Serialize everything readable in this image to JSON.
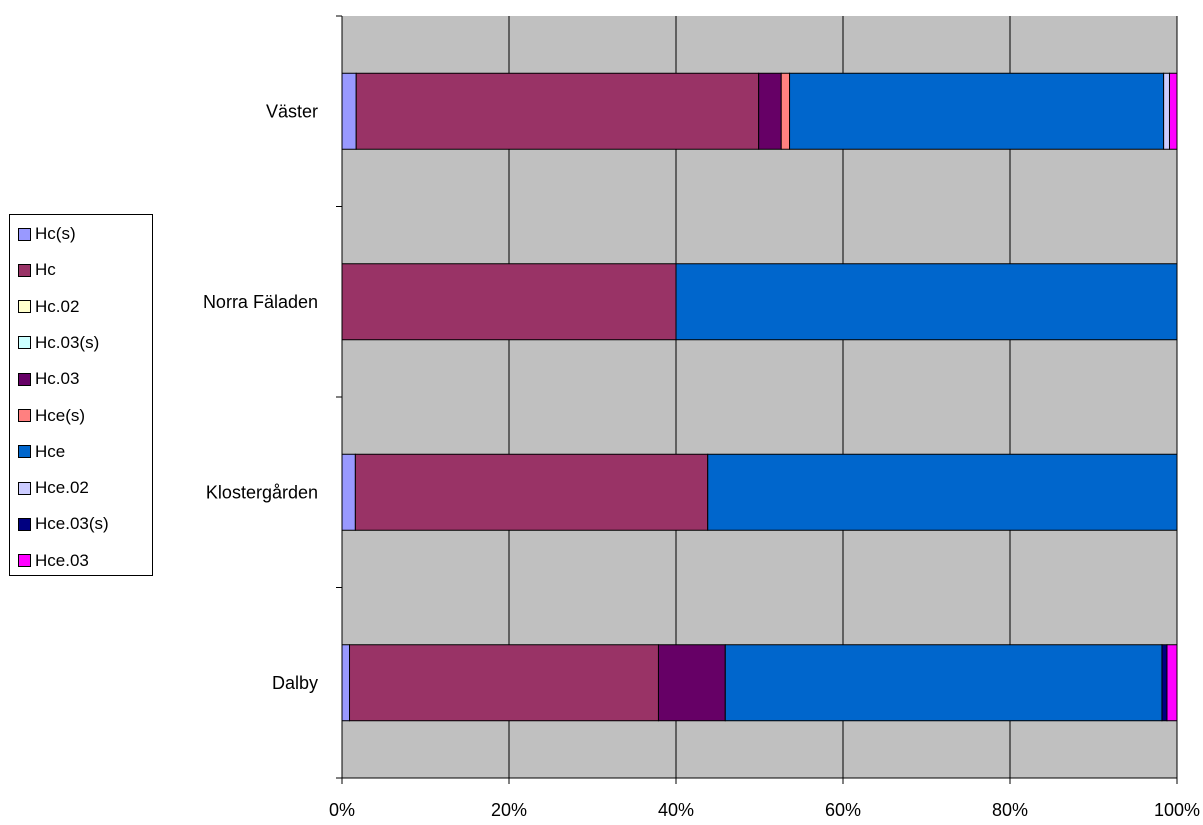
{
  "chart_data": {
    "type": "bar",
    "orientation": "horizontal",
    "stacked": "percent",
    "categories": [
      "Väster",
      "Norra Fäladen",
      "Klostergården",
      "Dalby"
    ],
    "xlim": [
      0,
      100
    ],
    "x_ticks": [
      "0%",
      "20%",
      "40%",
      "60%",
      "80%",
      "100%"
    ],
    "grid": true,
    "legend_position": "left",
    "series": [
      {
        "name": "Hc(s)",
        "color": "#9999FF",
        "values": [
          1.7,
          0,
          1.6,
          0.9
        ]
      },
      {
        "name": "Hc",
        "color": "#993366",
        "values": [
          48.2,
          40,
          42.2,
          37.0
        ]
      },
      {
        "name": "Hc.02",
        "color": "#FFFFCC",
        "values": [
          0,
          0,
          0,
          0
        ]
      },
      {
        "name": "Hc.03(s)",
        "color": "#CCFFFF",
        "values": [
          0,
          0,
          0,
          0
        ]
      },
      {
        "name": "Hc.03",
        "color": "#660066",
        "values": [
          2.7,
          0,
          0,
          8.0
        ]
      },
      {
        "name": "Hce(s)",
        "color": "#FF8080",
        "values": [
          1.0,
          0,
          0,
          0
        ]
      },
      {
        "name": "Hce",
        "color": "#0066CC",
        "values": [
          44.8,
          60,
          56.2,
          52.3
        ]
      },
      {
        "name": "Hce.02",
        "color": "#CCCCFF",
        "values": [
          0.7,
          0,
          0,
          0
        ]
      },
      {
        "name": "Hce.03(s)",
        "color": "#000080",
        "values": [
          0,
          0,
          0,
          0.6
        ]
      },
      {
        "name": "Hce.03",
        "color": "#FF00FF",
        "values": [
          0.9,
          0,
          0,
          1.2
        ]
      }
    ]
  }
}
